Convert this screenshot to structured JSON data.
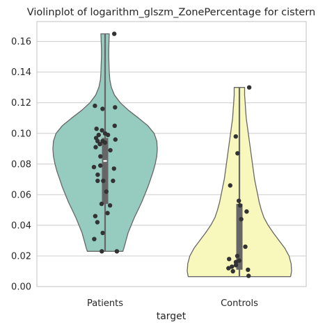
{
  "chart_data": {
    "type": "violin",
    "title": "Violinplot of logarithm_glszm_ZonePercentage for cistern",
    "xlabel": "target",
    "ylabel": "",
    "ylim": [
      0.0,
      0.173
    ],
    "yticks": [
      0.0,
      0.02,
      0.04,
      0.06,
      0.08,
      0.1,
      0.12,
      0.14,
      0.16
    ],
    "ytick_labels": [
      "0.00",
      "0.02",
      "0.04",
      "0.06",
      "0.08",
      "0.10",
      "0.12",
      "0.14",
      "0.16"
    ],
    "grid": true,
    "categories": [
      "Patients",
      "Controls"
    ],
    "series": [
      {
        "category": "Patients",
        "color": "#96cbc0",
        "min": 0.023,
        "max": 0.165,
        "q1": 0.054,
        "median": 0.082,
        "q3": 0.097,
        "density_profile": [
          [
            0.023,
            0.34
          ],
          [
            0.025,
            0.36
          ],
          [
            0.03,
            0.4
          ],
          [
            0.035,
            0.44
          ],
          [
            0.04,
            0.5
          ],
          [
            0.045,
            0.56
          ],
          [
            0.05,
            0.63
          ],
          [
            0.055,
            0.7
          ],
          [
            0.06,
            0.76
          ],
          [
            0.065,
            0.82
          ],
          [
            0.07,
            0.87
          ],
          [
            0.075,
            0.92
          ],
          [
            0.08,
            0.96
          ],
          [
            0.085,
            0.99
          ],
          [
            0.09,
            1.0
          ],
          [
            0.095,
            0.99
          ],
          [
            0.1,
            0.94
          ],
          [
            0.105,
            0.82
          ],
          [
            0.11,
            0.64
          ],
          [
            0.115,
            0.45
          ],
          [
            0.12,
            0.29
          ],
          [
            0.125,
            0.18
          ],
          [
            0.13,
            0.12
          ],
          [
            0.135,
            0.09
          ],
          [
            0.14,
            0.08
          ],
          [
            0.145,
            0.075
          ],
          [
            0.15,
            0.07
          ],
          [
            0.155,
            0.07
          ],
          [
            0.16,
            0.075
          ],
          [
            0.165,
            0.08
          ]
        ],
        "points": [
          0.165,
          0.117,
          0.118,
          0.116,
          0.105,
          0.103,
          0.102,
          0.1,
          0.099,
          0.099,
          0.097,
          0.096,
          0.095,
          0.095,
          0.094,
          0.093,
          0.091,
          0.089,
          0.085,
          0.079,
          0.078,
          0.077,
          0.073,
          0.069,
          0.069,
          0.069,
          0.062,
          0.054,
          0.053,
          0.048,
          0.046,
          0.042,
          0.035,
          0.031,
          0.023,
          0.023
        ]
      },
      {
        "category": "Controls",
        "color": "#f8f7bc",
        "min": 0.0065,
        "max": 0.13,
        "q1": 0.011,
        "median": 0.017,
        "q3": 0.054,
        "density_profile": [
          [
            0.0065,
            0.98
          ],
          [
            0.01,
            1.0
          ],
          [
            0.015,
            0.99
          ],
          [
            0.02,
            0.95
          ],
          [
            0.025,
            0.87
          ],
          [
            0.03,
            0.76
          ],
          [
            0.035,
            0.65
          ],
          [
            0.04,
            0.55
          ],
          [
            0.045,
            0.47
          ],
          [
            0.05,
            0.42
          ],
          [
            0.055,
            0.38
          ],
          [
            0.06,
            0.35
          ],
          [
            0.065,
            0.32
          ],
          [
            0.07,
            0.29
          ],
          [
            0.075,
            0.27
          ],
          [
            0.08,
            0.25
          ],
          [
            0.085,
            0.23
          ],
          [
            0.09,
            0.21
          ],
          [
            0.095,
            0.19
          ],
          [
            0.1,
            0.17
          ],
          [
            0.105,
            0.15
          ],
          [
            0.11,
            0.13
          ],
          [
            0.115,
            0.12
          ],
          [
            0.12,
            0.11
          ],
          [
            0.125,
            0.1
          ],
          [
            0.13,
            0.1
          ]
        ],
        "points": [
          0.13,
          0.098,
          0.087,
          0.066,
          0.056,
          0.053,
          0.049,
          0.044,
          0.026,
          0.02,
          0.018,
          0.017,
          0.016,
          0.014,
          0.013,
          0.012,
          0.011,
          0.01,
          0.007
        ]
      }
    ],
    "box_color": "#666666",
    "point_color": "#333333"
  }
}
